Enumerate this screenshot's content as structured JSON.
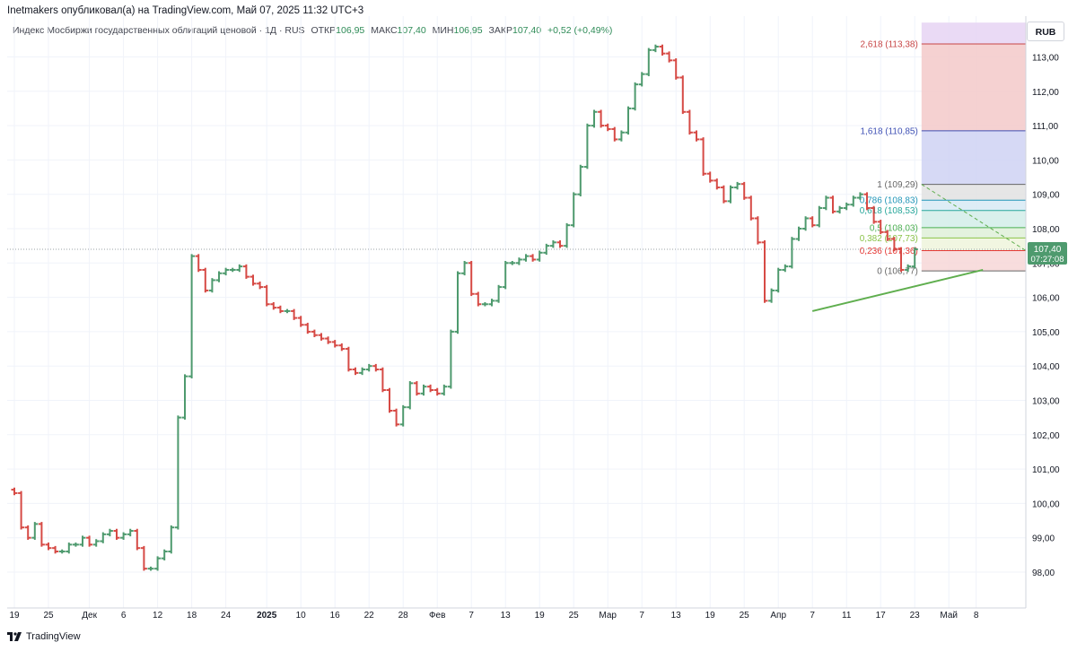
{
  "header": {
    "title": "Inetmakers опубликовал(а) на TradingView.com, Май 07, 2025 11:32 UTC+3"
  },
  "legend": {
    "symbol": "Индекс Мосбиржи государственных облигаций ценовой · 1Д · RUS",
    "open_label": "ОТКР",
    "open": "106,95",
    "high_label": "МАКС",
    "high": "107,40",
    "low_label": "МИН",
    "low": "106,95",
    "close_label": "ЗАКР",
    "close": "107,40",
    "change": "+0,52 (+0,49%)"
  },
  "toolbar": {
    "currency": "RUB"
  },
  "price_tag": {
    "price": "107,40",
    "countdown": "07:27:08"
  },
  "footer": {
    "brand": "TradingView"
  },
  "colors": {
    "up": "#4e9a6e",
    "down": "#d64a45",
    "trendline": "#5fae4e",
    "dotted_price": "#9aa0a6"
  },
  "chart_data": {
    "type": "ohlc",
    "y_axis": {
      "range": [
        97.3,
        113.9
      ],
      "ticks": [
        "98,00",
        "99,00",
        "100,00",
        "101,00",
        "102,00",
        "103,00",
        "104,00",
        "105,00",
        "106,00",
        "107,00",
        "108,00",
        "109,00",
        "110,00",
        "111,00",
        "112,00",
        "113,00"
      ],
      "tick_values": [
        98,
        99,
        100,
        101,
        102,
        103,
        104,
        105,
        106,
        107,
        108,
        109,
        110,
        111,
        112,
        113
      ]
    },
    "x_axis": {
      "labels": [
        "19",
        "25",
        "Дек",
        "6",
        "12",
        "18",
        "24",
        "2025",
        "10",
        "16",
        "22",
        "28",
        "Фев",
        "7",
        "13",
        "19",
        "25",
        "Мар",
        "7",
        "13",
        "19",
        "25",
        "Апр",
        "7",
        "11",
        "17",
        "23",
        "Май",
        "8"
      ],
      "label_bar_index": [
        0,
        5,
        11,
        16,
        21,
        26,
        31,
        37,
        42,
        47,
        52,
        57,
        62,
        67,
        72,
        77,
        82,
        87,
        92,
        97,
        102,
        107,
        112,
        117,
        122,
        127,
        132,
        137,
        141
      ]
    },
    "last_price": 107.4,
    "closes": [
      100.3,
      99.3,
      99.0,
      99.4,
      98.8,
      98.7,
      98.6,
      98.6,
      98.8,
      98.8,
      99.0,
      98.8,
      98.9,
      99.1,
      99.2,
      99.0,
      99.1,
      99.2,
      98.7,
      98.1,
      98.1,
      98.4,
      98.6,
      99.3,
      102.5,
      103.7,
      107.2,
      106.8,
      106.2,
      106.5,
      106.7,
      106.8,
      106.8,
      106.9,
      106.6,
      106.4,
      106.3,
      105.8,
      105.7,
      105.6,
      105.6,
      105.4,
      105.2,
      105.0,
      104.9,
      104.8,
      104.7,
      104.6,
      104.5,
      103.9,
      103.8,
      103.9,
      104.0,
      103.9,
      103.3,
      102.7,
      102.3,
      102.8,
      103.5,
      103.2,
      103.4,
      103.3,
      103.2,
      103.4,
      105.0,
      106.7,
      107.0,
      106.1,
      105.8,
      105.8,
      105.9,
      106.3,
      107.0,
      107.0,
      107.1,
      107.2,
      107.1,
      107.3,
      107.5,
      107.6,
      107.5,
      108.1,
      109.0,
      109.8,
      111.0,
      111.4,
      111.0,
      110.9,
      110.6,
      110.8,
      111.5,
      112.2,
      112.5,
      113.2,
      113.3,
      113.1,
      112.9,
      112.4,
      111.4,
      110.8,
      110.6,
      109.6,
      109.4,
      109.2,
      108.8,
      109.2,
      109.3,
      108.9,
      108.3,
      107.6,
      105.9,
      106.2,
      106.8,
      106.9,
      107.7,
      108.0,
      108.3,
      108.1,
      108.6,
      108.9,
      108.5,
      108.6,
      108.7,
      108.9,
      109.0,
      108.6,
      108.2,
      107.9,
      107.7,
      107.4,
      106.8,
      106.9,
      107.4
    ],
    "fibonacci": {
      "levels": [
        {
          "ratio": "2,618",
          "price": 113.38,
          "label": "2,618 (113,38)",
          "color": "#c74545"
        },
        {
          "ratio": "1,618",
          "price": 110.85,
          "label": "1,618 (110,85)",
          "color": "#3f51b5"
        },
        {
          "ratio": "1",
          "price": 109.29,
          "label": "1 (109,29)",
          "color": "#666666"
        },
        {
          "ratio": "0,786",
          "price": 108.83,
          "label": "0,786 (108,83)",
          "color": "#2196b8"
        },
        {
          "ratio": "0,618",
          "price": 108.53,
          "label": "0,618 (108,53)",
          "color": "#26a69a"
        },
        {
          "ratio": "0,5",
          "price": 108.03,
          "label": "0,5 (108,03)",
          "color": "#4caf50"
        },
        {
          "ratio": "0,382",
          "price": 107.73,
          "label": "0,382 (107,73)",
          "color": "#8bc34a"
        },
        {
          "ratio": "0,236",
          "price": 107.36,
          "label": "0,236 (107,36)",
          "color": "#e53935"
        },
        {
          "ratio": "0",
          "price": 106.77,
          "label": "0 (106,77)",
          "color": "#666666"
        }
      ],
      "top_extra": 114.0,
      "zone_colors": [
        "#e6d3f3",
        "#f3c9c9",
        "#cfd2f3",
        "#e2e2e2",
        "#d7eaf5",
        "#d2ede9",
        "#dff0d8",
        "#eef5dc",
        "#f7d7d7"
      ]
    },
    "trendline": {
      "from": [
        117,
        105.6
      ],
      "to": [
        142,
        106.8
      ]
    }
  }
}
